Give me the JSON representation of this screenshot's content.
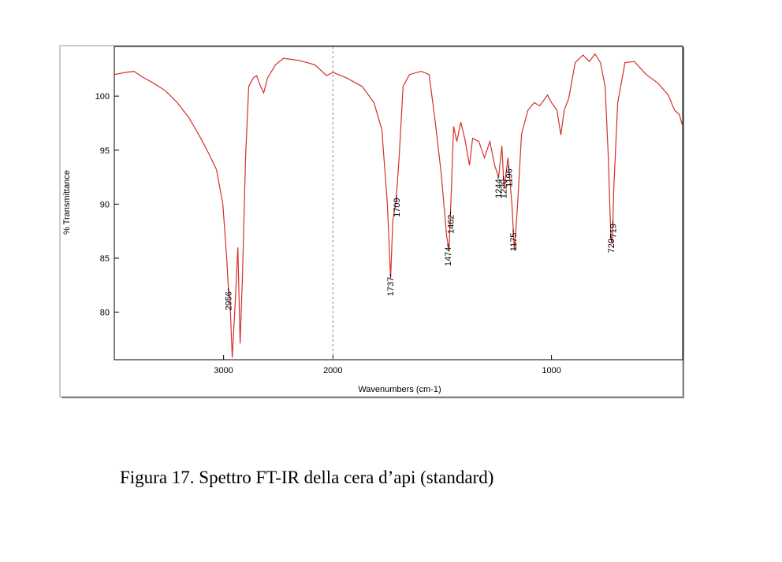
{
  "chart_data": {
    "type": "line",
    "caption": "Figura 17. Spettro FT-IR della cera d’api (standard)",
    "xlabel": "Wavenumbers (cm-1)",
    "ylabel": "% Transmittance",
    "xlim": [
      4000,
      400
    ],
    "x_break": 2000,
    "x_break_expansion": 2,
    "ylim": [
      75.6,
      104.6
    ],
    "xticks": [
      3000,
      2000,
      1000
    ],
    "yticks": [
      80,
      85,
      90,
      95,
      100
    ],
    "x": [
      4000,
      3892,
      3820,
      3748,
      3640,
      3532,
      3424,
      3317,
      3209,
      3137,
      3065,
      3007,
      2971,
      2957,
      2942,
      2921,
      2892,
      2870,
      2849,
      2827,
      2799,
      2770,
      2727,
      2698,
      2662,
      2633,
      2597,
      2525,
      2453,
      2309,
      2165,
      2058,
      2000,
      1939,
      1866,
      1812,
      1776,
      1751,
      1736,
      1726,
      1711,
      1697,
      1679,
      1650,
      1596,
      1560,
      1534,
      1505,
      1480,
      1469,
      1458,
      1448,
      1433,
      1415,
      1397,
      1375,
      1361,
      1332,
      1307,
      1282,
      1260,
      1242,
      1227,
      1217,
      1199,
      1181,
      1170,
      1155,
      1137,
      1108,
      1079,
      1054,
      1018,
      1000,
      975,
      957,
      942,
      921,
      892,
      856,
      827,
      801,
      776,
      755,
      740,
      729,
      722,
      715,
      697,
      664,
      621,
      567,
      513,
      466,
      437,
      415,
      400
    ],
    "series": [
      {
        "color": "#d4302a",
        "values": [
          102.0,
          102.2,
          102.3,
          101.8,
          101.2,
          100.5,
          99.4,
          98.0,
          96.1,
          94.7,
          93.2,
          90.0,
          84.9,
          82.3,
          81.2,
          75.8,
          81.2,
          86.0,
          77.1,
          83.4,
          94.3,
          100.9,
          101.7,
          101.9,
          100.9,
          100.3,
          101.7,
          102.9,
          103.5,
          103.3,
          102.9,
          101.9,
          102.2,
          101.7,
          100.9,
          99.4,
          96.9,
          90.0,
          83.1,
          88.5,
          90.3,
          94.3,
          100.9,
          102.0,
          102.3,
          102.0,
          98.0,
          92.9,
          87.1,
          85.7,
          91.4,
          97.2,
          95.8,
          97.6,
          96.1,
          93.6,
          96.1,
          95.8,
          94.3,
          95.8,
          93.6,
          92.5,
          95.4,
          91.4,
          94.3,
          90.0,
          85.7,
          90.0,
          96.5,
          98.7,
          99.4,
          99.1,
          100.1,
          99.4,
          98.7,
          96.4,
          98.7,
          99.8,
          103.1,
          103.8,
          103.2,
          103.9,
          103.1,
          100.9,
          94.3,
          87.1,
          86.3,
          91.4,
          99.4,
          103.1,
          103.2,
          102.0,
          101.2,
          100.1,
          98.7,
          98.3,
          97.2
        ]
      }
    ],
    "peaks": [
      2956,
      1737,
      1709,
      1474,
      1462,
      1244,
      1220,
      1196,
      1175,
      719,
      729
    ]
  }
}
